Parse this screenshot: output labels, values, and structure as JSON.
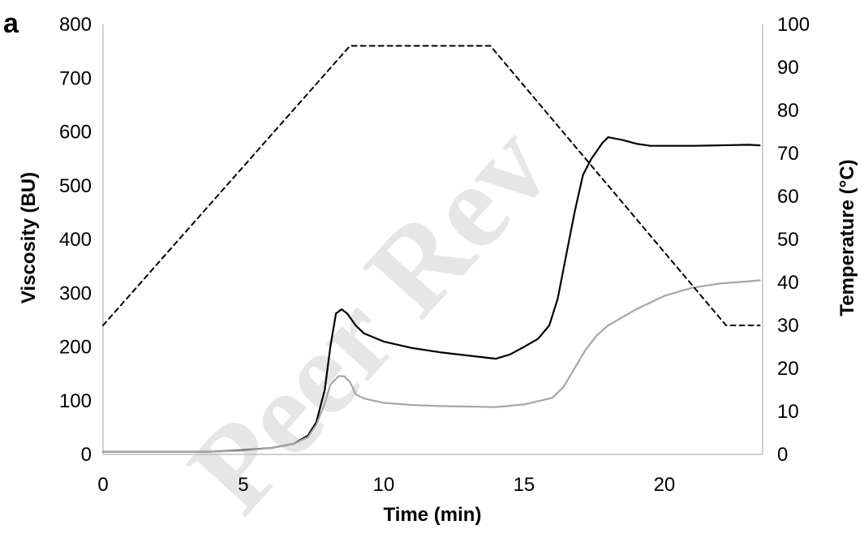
{
  "panel_label": "a",
  "watermark": "Peer Rev",
  "chart_data": {
    "type": "line",
    "xlabel": "Time (min)",
    "ylabel": "Viscosity (BU)",
    "y2label": "Temperature (°C)",
    "xlim": [
      0,
      23.5
    ],
    "ylim": [
      0,
      800
    ],
    "y2lim": [
      0,
      100
    ],
    "xticks": [
      0,
      5,
      10,
      15,
      20
    ],
    "yticks": [
      0,
      100,
      200,
      300,
      400,
      500,
      600,
      700,
      800
    ],
    "y2ticks": [
      0,
      10,
      20,
      30,
      40,
      50,
      60,
      70,
      80,
      90,
      100
    ],
    "grid": false,
    "legend": "none",
    "series": [
      {
        "axis": "left",
        "color": "#000000",
        "style": "solid",
        "x": [
          0,
          2,
          3.8,
          5,
          6,
          6.8,
          7.3,
          7.6,
          7.9,
          8.1,
          8.3,
          8.5,
          8.7,
          9.0,
          9.3,
          10,
          11,
          12,
          13,
          14,
          14.5,
          15,
          15.5,
          15.9,
          16.2,
          16.5,
          16.8,
          17.1,
          17.4,
          17.6,
          17.8,
          18.0,
          18.2,
          18.5,
          19,
          19.5,
          20,
          21,
          22,
          23,
          23.4
        ],
        "y": [
          5,
          5,
          5,
          8,
          12,
          20,
          35,
          60,
          120,
          200,
          262,
          270,
          262,
          240,
          225,
          210,
          198,
          190,
          184,
          178,
          186,
          200,
          215,
          240,
          290,
          370,
          450,
          520,
          550,
          565,
          580,
          590,
          588,
          585,
          578,
          574,
          574,
          574,
          575,
          576,
          575
        ]
      },
      {
        "axis": "left",
        "color": "#a6a6a6",
        "style": "solid",
        "x": [
          0,
          2,
          3.8,
          5,
          6,
          6.8,
          7.3,
          7.6,
          7.9,
          8.1,
          8.4,
          8.6,
          8.8,
          9.0,
          9.3,
          10,
          11,
          12,
          13,
          14,
          15,
          16,
          16.4,
          16.8,
          17.2,
          17.6,
          18,
          19,
          20,
          21,
          22,
          23,
          23.4
        ],
        "y": [
          5,
          5,
          5,
          7,
          12,
          20,
          32,
          55,
          95,
          130,
          146,
          145,
          135,
          112,
          104,
          96,
          92,
          90,
          89,
          88,
          93,
          105,
          125,
          160,
          195,
          222,
          240,
          270,
          295,
          310,
          318,
          322,
          324
        ]
      },
      {
        "axis": "right",
        "color": "#000000",
        "style": "dashed",
        "x": [
          0,
          8.8,
          13.8,
          22.2,
          23.4
        ],
        "y": [
          30,
          95,
          95,
          30,
          30
        ]
      }
    ]
  }
}
